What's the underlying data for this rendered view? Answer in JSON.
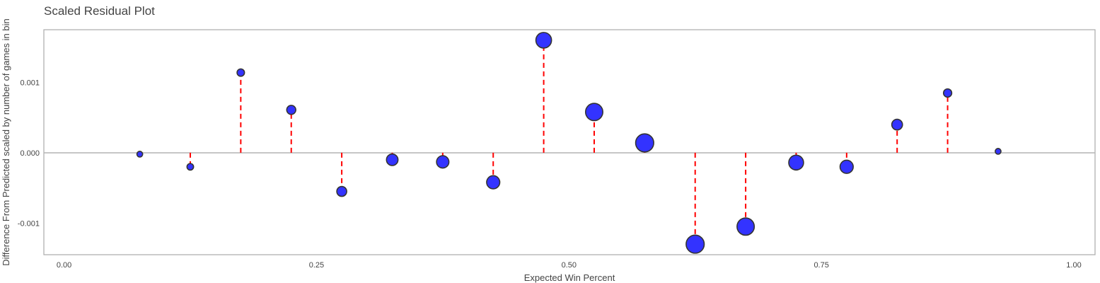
{
  "chart_data": {
    "type": "scatter",
    "title": "Scaled Residual Plot",
    "xlabel": "Expected Win Percent",
    "ylabel": "Difference From Predicted scaled by number of games in bin",
    "xlim": [
      -0.02,
      1.021
    ],
    "ylim": [
      -0.00145,
      0.00175
    ],
    "x_ticks": [
      0.0,
      0.25,
      0.5,
      0.75,
      1.0
    ],
    "x_tick_labels": [
      "0.00",
      "0.25",
      "0.50",
      "0.75",
      "1.00"
    ],
    "y_ticks": [
      -0.001,
      0.0,
      0.001
    ],
    "y_tick_labels": [
      "-0.001",
      "0.000",
      "0.001"
    ],
    "grid": false,
    "zero_line": true,
    "marker_color": "#3333ff",
    "marker_edge_color": "#333333",
    "residual_line_color": "#ff0000",
    "points": [
      {
        "x": 0.075,
        "y": -2e-05,
        "size": 1
      },
      {
        "x": 0.125,
        "y": -0.0002,
        "size": 2
      },
      {
        "x": 0.175,
        "y": 0.00114,
        "size": 3
      },
      {
        "x": 0.225,
        "y": 0.00061,
        "size": 5
      },
      {
        "x": 0.275,
        "y": -0.00055,
        "size": 6
      },
      {
        "x": 0.325,
        "y": -0.0001,
        "size": 8
      },
      {
        "x": 0.375,
        "y": -0.00013,
        "size": 9
      },
      {
        "x": 0.425,
        "y": -0.00042,
        "size": 10
      },
      {
        "x": 0.475,
        "y": 0.0016,
        "size": 13
      },
      {
        "x": 0.525,
        "y": 0.00058,
        "size": 15
      },
      {
        "x": 0.575,
        "y": 0.00014,
        "size": 16
      },
      {
        "x": 0.625,
        "y": -0.0013,
        "size": 16
      },
      {
        "x": 0.675,
        "y": -0.00105,
        "size": 15
      },
      {
        "x": 0.725,
        "y": -0.00014,
        "size": 12
      },
      {
        "x": 0.775,
        "y": -0.0002,
        "size": 10
      },
      {
        "x": 0.825,
        "y": 0.0004,
        "size": 7
      },
      {
        "x": 0.875,
        "y": 0.00085,
        "size": 4
      },
      {
        "x": 0.925,
        "y": 2e-05,
        "size": 1
      }
    ]
  }
}
